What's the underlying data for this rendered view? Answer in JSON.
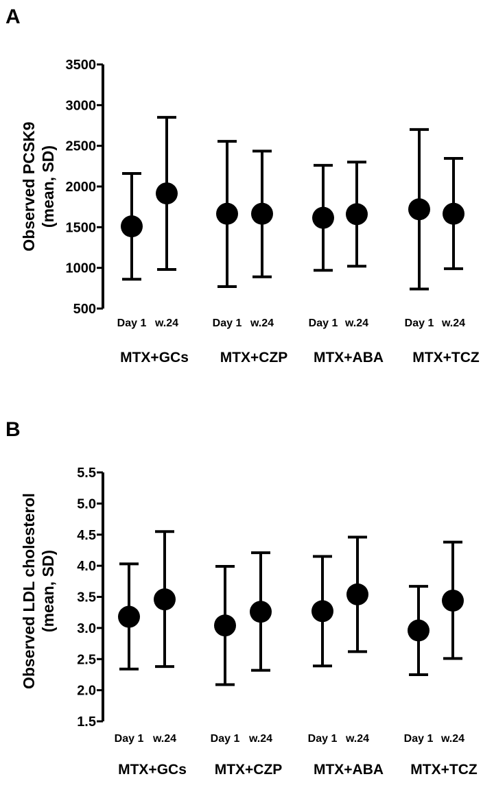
{
  "chart_data": [
    {
      "panel": "A",
      "type": "scatter",
      "ylabel_line1": "Observed PCSK9",
      "ylabel_line2": "(mean, SD)",
      "ylim": [
        500,
        3500
      ],
      "yticks": [
        500,
        1000,
        1500,
        2000,
        2500,
        3000,
        3500
      ],
      "conditions": [
        "Day 1",
        "w.24"
      ],
      "groups": [
        {
          "name": "MTX+GCs",
          "points": [
            {
              "condition": "Day 1",
              "mean": 1510,
              "lower": 860,
              "upper": 2160
            },
            {
              "condition": "w.24",
              "mean": 1915,
              "lower": 980,
              "upper": 2850
            }
          ]
        },
        {
          "name": "MTX+CZP",
          "points": [
            {
              "condition": "Day 1",
              "mean": 1665,
              "lower": 770,
              "upper": 2555
            },
            {
              "condition": "w.24",
              "mean": 1665,
              "lower": 890,
              "upper": 2435
            }
          ]
        },
        {
          "name": "MTX+ABA",
          "points": [
            {
              "condition": "Day 1",
              "mean": 1615,
              "lower": 970,
              "upper": 2260
            },
            {
              "condition": "w.24",
              "mean": 1660,
              "lower": 1020,
              "upper": 2300
            }
          ]
        },
        {
          "name": "MTX+TCZ",
          "points": [
            {
              "condition": "Day 1",
              "mean": 1720,
              "lower": 740,
              "upper": 2700
            },
            {
              "condition": "w.24",
              "mean": 1665,
              "lower": 990,
              "upper": 2345
            }
          ]
        }
      ]
    },
    {
      "panel": "B",
      "type": "scatter",
      "ylabel_line1": "Observed LDL cholesterol",
      "ylabel_line2": "(mean, SD)",
      "ylim": [
        1.5,
        5.5
      ],
      "yticks": [
        "1.5",
        "2.0",
        "2.5",
        "3.0",
        "3.5",
        "4.0",
        "4.5",
        "5.0",
        "5.5"
      ],
      "conditions": [
        "Day 1",
        "w.24"
      ],
      "groups": [
        {
          "name": "MTX+GCs",
          "points": [
            {
              "condition": "Day 1",
              "mean": 3.18,
              "lower": 2.34,
              "upper": 4.03
            },
            {
              "condition": "w.24",
              "mean": 3.46,
              "lower": 2.38,
              "upper": 4.55
            }
          ]
        },
        {
          "name": "MTX+CZP",
          "points": [
            {
              "condition": "Day 1",
              "mean": 3.04,
              "lower": 2.09,
              "upper": 3.99
            },
            {
              "condition": "w.24",
              "mean": 3.26,
              "lower": 2.32,
              "upper": 4.21
            }
          ]
        },
        {
          "name": "MTX+ABA",
          "points": [
            {
              "condition": "Day 1",
              "mean": 3.27,
              "lower": 2.39,
              "upper": 4.15
            },
            {
              "condition": "w.24",
              "mean": 3.54,
              "lower": 2.62,
              "upper": 4.46
            }
          ]
        },
        {
          "name": "MTX+TCZ",
          "points": [
            {
              "condition": "Day 1",
              "mean": 2.96,
              "lower": 2.25,
              "upper": 3.67
            },
            {
              "condition": "w.24",
              "mean": 3.44,
              "lower": 2.51,
              "upper": 4.38
            }
          ]
        }
      ]
    }
  ]
}
